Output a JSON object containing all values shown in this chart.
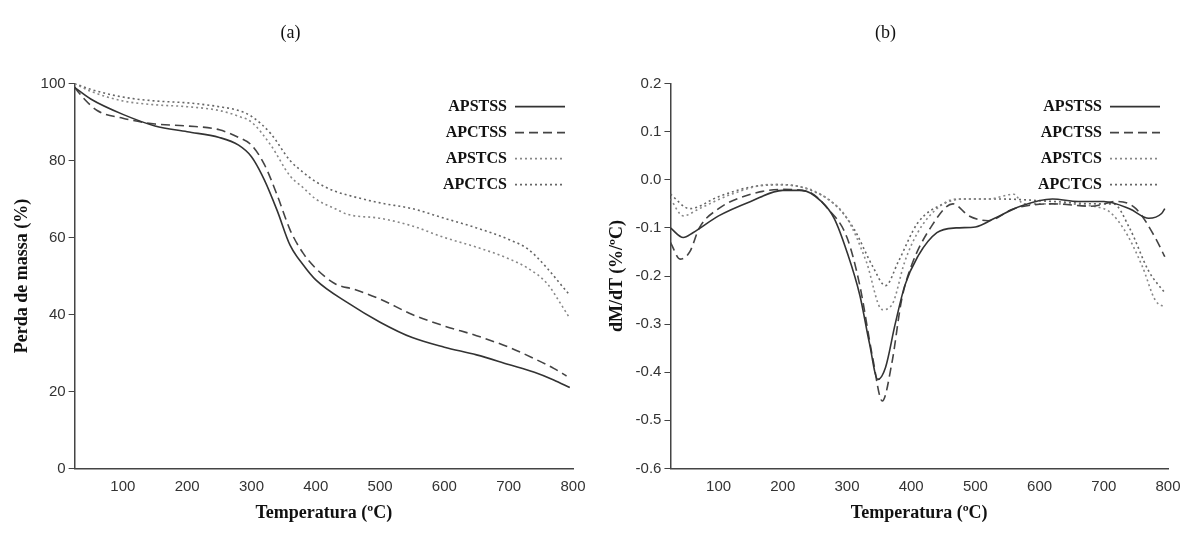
{
  "chart_data": [
    {
      "type": "line",
      "title": "(a)",
      "xlabel": "Temperatura (ºC)",
      "ylabel": "Perda de massa (%)",
      "xlim": [
        25,
        800
      ],
      "xticks": [
        100,
        200,
        300,
        400,
        500,
        600,
        700,
        800
      ],
      "ylim": [
        0,
        100
      ],
      "yticks": [
        0,
        20,
        40,
        60,
        80,
        100
      ],
      "legend": "top right",
      "series": [
        {
          "name": "APSTSS",
          "color": "#333333",
          "line_style": "solid",
          "x": [
            25,
            50,
            100,
            150,
            200,
            250,
            280,
            300,
            320,
            340,
            360,
            380,
            400,
            450,
            500,
            550,
            600,
            650,
            700,
            740,
            770,
            795
          ],
          "values": [
            99,
            96,
            92,
            89,
            87.5,
            86,
            84,
            81,
            75,
            67,
            58,
            53,
            49,
            43,
            38,
            34,
            31.5,
            29.5,
            27,
            25,
            23,
            21
          ]
        },
        {
          "name": "APCTSS",
          "color": "#444444",
          "line_style": "dashed",
          "x": [
            25,
            40,
            60,
            100,
            150,
            200,
            250,
            280,
            300,
            320,
            340,
            360,
            380,
            400,
            430,
            460,
            500,
            550,
            600,
            650,
            700,
            740,
            770,
            790
          ],
          "values": [
            99,
            96,
            93,
            91,
            89.5,
            89,
            88,
            86,
            84,
            79,
            71,
            62,
            56,
            52,
            48,
            46.5,
            44,
            40,
            37,
            34.5,
            31.5,
            28.5,
            26,
            24
          ]
        },
        {
          "name": "APSTCS",
          "color": "#888888",
          "line_style": "dotted",
          "x": [
            25,
            50,
            100,
            150,
            200,
            250,
            280,
            300,
            330,
            360,
            380,
            400,
            430,
            450,
            500,
            550,
            600,
            650,
            700,
            730,
            760,
            780,
            795
          ],
          "values": [
            100,
            98,
            95.5,
            94.5,
            94,
            93,
            91.5,
            90,
            84,
            76,
            73,
            70,
            67.5,
            66,
            65,
            63,
            60,
            57.5,
            54.5,
            52,
            48,
            43,
            39
          ]
        },
        {
          "name": "APCTCS",
          "color": "#666666",
          "line_style": "dotted",
          "x": [
            25,
            50,
            100,
            150,
            200,
            250,
            280,
            300,
            330,
            360,
            380,
            400,
            430,
            450,
            500,
            550,
            600,
            650,
            700,
            730,
            760,
            780,
            795
          ],
          "values": [
            100,
            98.5,
            96.5,
            95.5,
            95,
            94,
            93,
            91.5,
            87,
            80,
            77,
            74.5,
            72,
            71,
            69,
            67.5,
            65,
            62.5,
            59.5,
            57,
            52,
            48,
            45
          ]
        }
      ]
    },
    {
      "type": "line",
      "title": "(b)",
      "xlabel": "Temperatura (ºC)",
      "ylabel": "dM/dT (%/ºC)",
      "xlim": [
        25,
        800
      ],
      "xticks": [
        100,
        200,
        300,
        400,
        500,
        600,
        700,
        800
      ],
      "ylim": [
        -0.6,
        0.2
      ],
      "yticks": [
        {
          "value": -0.6,
          "label": "-0.6"
        },
        {
          "value": -0.5,
          "label": "-0.5"
        },
        {
          "value": -0.4,
          "label": "-0.4"
        },
        {
          "value": -0.3,
          "label": "-0.3"
        },
        {
          "value": -0.2,
          "label": "-0.2"
        },
        {
          "value": -0.1,
          "label": "-0.1"
        },
        {
          "value": 0,
          "label": "0.0"
        },
        {
          "value": 0.1,
          "label": "0.1"
        },
        {
          "value": 0.2,
          "label": "0.2"
        }
      ],
      "legend": "top right",
      "series": [
        {
          "name": "APSTSS",
          "color": "#333333",
          "line_style": "solid",
          "x": [
            25,
            45,
            60,
            100,
            150,
            200,
            230,
            260,
            280,
            300,
            320,
            335,
            348,
            360,
            375,
            390,
            410,
            440,
            470,
            500,
            530,
            570,
            620,
            660,
            700,
            740,
            770,
            790,
            795
          ],
          "values": [
            -0.1,
            -0.12,
            -0.11,
            -0.075,
            -0.045,
            -0.022,
            -0.022,
            -0.045,
            -0.08,
            -0.15,
            -0.24,
            -0.34,
            -0.415,
            -0.39,
            -0.3,
            -0.22,
            -0.16,
            -0.11,
            -0.1,
            -0.098,
            -0.08,
            -0.055,
            -0.04,
            -0.045,
            -0.045,
            -0.06,
            -0.08,
            -0.07,
            -0.06
          ]
        },
        {
          "name": "APCTSS",
          "color": "#444444",
          "line_style": "dashed",
          "x": [
            25,
            40,
            55,
            70,
            100,
            150,
            200,
            240,
            270,
            300,
            320,
            340,
            355,
            370,
            385,
            400,
            430,
            465,
            490,
            520,
            560,
            620,
            680,
            720,
            750,
            780,
            795
          ],
          "values": [
            -0.13,
            -0.165,
            -0.15,
            -0.1,
            -0.06,
            -0.03,
            -0.02,
            -0.025,
            -0.06,
            -0.12,
            -0.22,
            -0.37,
            -0.46,
            -0.38,
            -0.25,
            -0.18,
            -0.1,
            -0.05,
            -0.075,
            -0.085,
            -0.06,
            -0.05,
            -0.055,
            -0.045,
            -0.06,
            -0.12,
            -0.16
          ]
        },
        {
          "name": "APSTCS",
          "color": "#888888",
          "line_style": "dotted",
          "x": [
            25,
            45,
            70,
            120,
            180,
            230,
            270,
            300,
            330,
            355,
            370,
            390,
            410,
            440,
            470,
            520,
            560,
            575,
            620,
            700,
            730,
            760,
            780,
            795
          ],
          "values": [
            -0.04,
            -0.075,
            -0.06,
            -0.03,
            -0.01,
            -0.015,
            -0.04,
            -0.08,
            -0.17,
            -0.27,
            -0.26,
            -0.17,
            -0.11,
            -0.06,
            -0.04,
            -0.04,
            -0.03,
            -0.05,
            -0.05,
            -0.06,
            -0.1,
            -0.18,
            -0.25,
            -0.265
          ]
        },
        {
          "name": "APCTCS",
          "color": "#666666",
          "line_style": "dotted",
          "x": [
            25,
            55,
            100,
            150,
            200,
            240,
            280,
            310,
            340,
            360,
            380,
            410,
            450,
            480,
            540,
            620,
            690,
            715,
            740,
            770,
            795
          ],
          "values": [
            -0.03,
            -0.06,
            -0.035,
            -0.015,
            -0.01,
            -0.02,
            -0.05,
            -0.1,
            -0.18,
            -0.22,
            -0.17,
            -0.09,
            -0.05,
            -0.04,
            -0.04,
            -0.045,
            -0.05,
            -0.05,
            -0.1,
            -0.19,
            -0.235
          ]
        }
      ]
    }
  ]
}
